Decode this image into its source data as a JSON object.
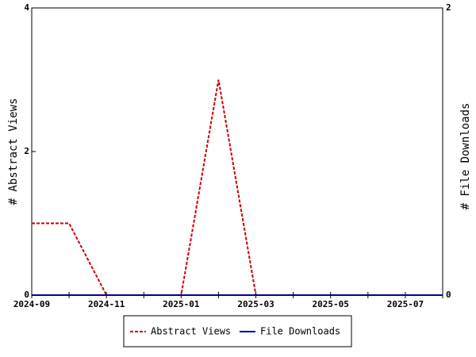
{
  "chart_data": {
    "type": "line",
    "categories": [
      "2024-09",
      null,
      "2024-11",
      null,
      "2025-01",
      null,
      "2025-03",
      null,
      "2025-05",
      null,
      "2025-07",
      null
    ],
    "series": [
      {
        "name": "Abstract Views",
        "color": "#cc0000",
        "dash": true,
        "values": [
          1,
          1,
          0,
          0,
          0,
          3,
          0,
          0,
          0,
          0,
          0,
          0
        ]
      },
      {
        "name": "File Downloads",
        "color": "#000099",
        "axis": "y2",
        "values": [
          0,
          0,
          0,
          0,
          0,
          0,
          0,
          0,
          0,
          0,
          0,
          0
        ]
      }
    ],
    "ylabel": "# Abstract Views",
    "y2label": "# File Downloads",
    "ylim": [
      0,
      4
    ],
    "yticks": [
      0,
      2,
      4
    ],
    "y2lim": [
      0,
      2
    ],
    "y2ticks": [
      0,
      2
    ],
    "legend": "bottom"
  }
}
